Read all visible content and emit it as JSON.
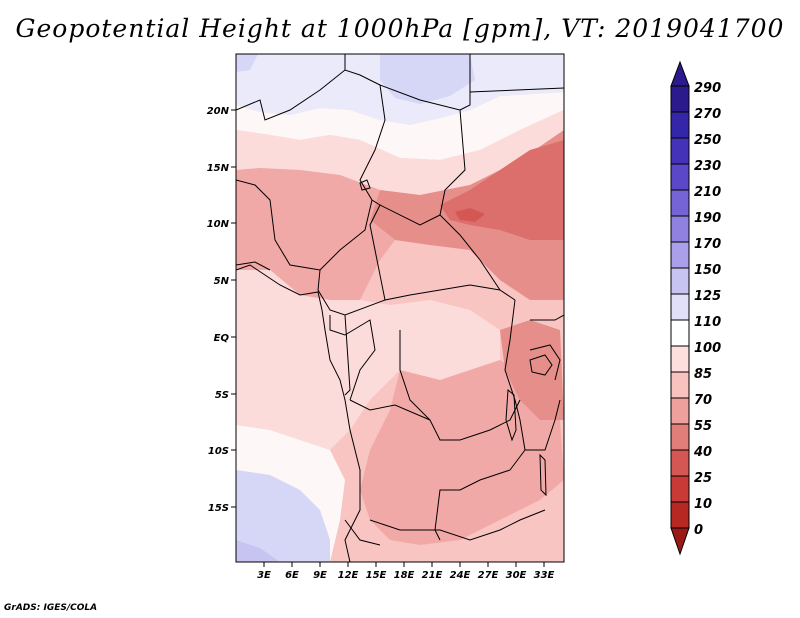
{
  "title": "Geopotential Height at 1000hPa [gpm], VT: 2019041700",
  "credit": "GrADS: IGES/COLA",
  "lat_labels": [
    "20N",
    "15N",
    "10N",
    "5N",
    "EQ",
    "5S",
    "10S",
    "15S"
  ],
  "lon_labels": [
    "3E",
    "6E",
    "9E",
    "12E",
    "15E",
    "18E",
    "21E",
    "24E",
    "27E",
    "30E",
    "33E"
  ],
  "colorbar": {
    "labels": [
      "290",
      "270",
      "250",
      "230",
      "210",
      "190",
      "170",
      "150",
      "125",
      "110",
      "100",
      "85",
      "70",
      "55",
      "40",
      "25",
      "10",
      "0"
    ],
    "colors": [
      "#2a1a8c",
      "#3326a8",
      "#4433b8",
      "#5a48c8",
      "#7464d6",
      "#9080e0",
      "#aaa0ea",
      "#c8c4f2",
      "#e2e0f8",
      "#ffffff",
      "#fde0de",
      "#f8c2bf",
      "#eea09c",
      "#e27e79",
      "#d55753",
      "#c93a36",
      "#b82823",
      "#9c1a16"
    ]
  },
  "map": {
    "lat_range": [
      -20,
      24
    ],
    "lon_range": [
      0,
      35
    ],
    "colors": {
      "high": "#d6d6f6",
      "high_mid": "#ebeafa",
      "white": "#fdf7f7",
      "lightest_pink": "#fcdcdb",
      "light_pink": "#f8c5c3",
      "mid_pink": "#f0a9a6",
      "dark_pink": "#e58e8a",
      "red": "#dc6f6b",
      "border": "#000000"
    }
  }
}
